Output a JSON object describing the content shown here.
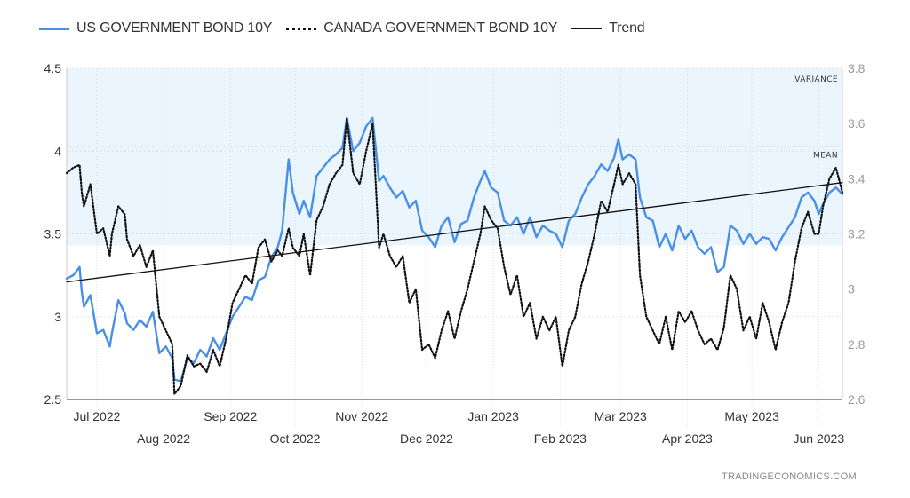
{
  "legend": {
    "us": "US GOVERNMENT BOND 10Y",
    "canada": "CANADA GOVERNMENT BOND 10Y",
    "trend": "Trend"
  },
  "annotations": {
    "variance": "VARIANCE",
    "mean": "MEAN"
  },
  "source": "TRADINGECONOMICS.COM",
  "colors": {
    "us": "#4a8fe7",
    "canada": "#111111",
    "trend": "#111111",
    "band": "#eaf5fd",
    "grid": "#dddddd"
  },
  "chart_data": {
    "type": "line",
    "xlabel": "",
    "ylabel": "",
    "x_range": [
      "2022-06-17",
      "2023-06-12"
    ],
    "ylim_left": [
      2.5,
      4.5
    ],
    "ylim_right": [
      2.6,
      3.8
    ],
    "left_ticks": [
      "2.5",
      "3",
      "3.5",
      "4",
      "4.5"
    ],
    "right_ticks": [
      "2.6",
      "2.8",
      "3",
      "3.2",
      "3.4",
      "3.6",
      "3.8"
    ],
    "x_ticks_upper": [
      {
        "date": "2022-07-01",
        "label": "Jul 2022"
      },
      {
        "date": "2022-09-01",
        "label": "Sep 2022"
      },
      {
        "date": "2022-11-01",
        "label": "Nov 2022"
      },
      {
        "date": "2023-01-01",
        "label": "Jan 2023"
      },
      {
        "date": "2023-03-01",
        "label": "Mar 2023"
      },
      {
        "date": "2023-05-01",
        "label": "May 2023"
      }
    ],
    "x_ticks_lower": [
      {
        "date": "2022-08-01",
        "label": "Aug 2022"
      },
      {
        "date": "2022-10-01",
        "label": "Oct 2022"
      },
      {
        "date": "2022-12-01",
        "label": "Dec 2022"
      },
      {
        "date": "2023-02-01",
        "label": "Feb 2023"
      },
      {
        "date": "2023-04-01",
        "label": "Apr 2023"
      },
      {
        "date": "2023-06-01",
        "label": "Jun 2023"
      }
    ],
    "grid": true,
    "legend_position": "top-left",
    "variance_band": {
      "from": 3.43,
      "to": 4.5
    },
    "mean_line": 4.03,
    "series": [
      {
        "name": "US GOVERNMENT BOND 10Y",
        "axis": "left",
        "style": "solid",
        "points": [
          [
            "2022-06-17",
            3.23
          ],
          [
            "2022-06-20",
            3.25
          ],
          [
            "2022-06-23",
            3.3
          ],
          [
            "2022-06-24",
            3.15
          ],
          [
            "2022-06-25",
            3.06
          ],
          [
            "2022-06-28",
            3.13
          ],
          [
            "2022-07-01",
            2.9
          ],
          [
            "2022-07-04",
            2.92
          ],
          [
            "2022-07-07",
            2.82
          ],
          [
            "2022-07-08",
            2.9
          ],
          [
            "2022-07-11",
            3.1
          ],
          [
            "2022-07-14",
            3.02
          ],
          [
            "2022-07-15",
            2.96
          ],
          [
            "2022-07-18",
            2.92
          ],
          [
            "2022-07-21",
            2.98
          ],
          [
            "2022-07-24",
            2.94
          ],
          [
            "2022-07-27",
            3.03
          ],
          [
            "2022-07-30",
            2.78
          ],
          [
            "2022-08-02",
            2.82
          ],
          [
            "2022-08-05",
            2.75
          ],
          [
            "2022-08-06",
            2.62
          ],
          [
            "2022-08-09",
            2.61
          ],
          [
            "2022-08-12",
            2.75
          ],
          [
            "2022-08-15",
            2.72
          ],
          [
            "2022-08-18",
            2.8
          ],
          [
            "2022-08-21",
            2.76
          ],
          [
            "2022-08-24",
            2.87
          ],
          [
            "2022-08-27",
            2.8
          ],
          [
            "2022-08-30",
            2.9
          ],
          [
            "2022-09-02",
            3.0
          ],
          [
            "2022-09-05",
            3.06
          ],
          [
            "2022-09-08",
            3.12
          ],
          [
            "2022-09-11",
            3.1
          ],
          [
            "2022-09-14",
            3.22
          ],
          [
            "2022-09-17",
            3.24
          ],
          [
            "2022-09-20",
            3.36
          ],
          [
            "2022-09-23",
            3.42
          ],
          [
            "2022-09-25",
            3.52
          ],
          [
            "2022-09-28",
            3.95
          ],
          [
            "2022-09-30",
            3.75
          ],
          [
            "2022-10-03",
            3.62
          ],
          [
            "2022-10-05",
            3.7
          ],
          [
            "2022-10-08",
            3.6
          ],
          [
            "2022-10-11",
            3.85
          ],
          [
            "2022-10-14",
            3.9
          ],
          [
            "2022-10-17",
            3.95
          ],
          [
            "2022-10-20",
            3.98
          ],
          [
            "2022-10-23",
            4.02
          ],
          [
            "2022-10-25",
            4.2
          ],
          [
            "2022-10-28",
            4.0
          ],
          [
            "2022-10-31",
            4.05
          ],
          [
            "2022-11-03",
            4.15
          ],
          [
            "2022-11-06",
            4.2
          ],
          [
            "2022-11-09",
            3.82
          ],
          [
            "2022-11-11",
            3.85
          ],
          [
            "2022-11-14",
            3.78
          ],
          [
            "2022-11-17",
            3.72
          ],
          [
            "2022-11-20",
            3.76
          ],
          [
            "2022-11-23",
            3.66
          ],
          [
            "2022-11-26",
            3.7
          ],
          [
            "2022-11-29",
            3.52
          ],
          [
            "2022-12-02",
            3.48
          ],
          [
            "2022-12-05",
            3.42
          ],
          [
            "2022-12-08",
            3.55
          ],
          [
            "2022-12-11",
            3.6
          ],
          [
            "2022-12-14",
            3.45
          ],
          [
            "2022-12-17",
            3.56
          ],
          [
            "2022-12-20",
            3.58
          ],
          [
            "2022-12-23",
            3.72
          ],
          [
            "2022-12-26",
            3.82
          ],
          [
            "2022-12-28",
            3.88
          ],
          [
            "2022-12-31",
            3.78
          ],
          [
            "2023-01-03",
            3.75
          ],
          [
            "2023-01-06",
            3.58
          ],
          [
            "2023-01-09",
            3.55
          ],
          [
            "2023-01-12",
            3.6
          ],
          [
            "2023-01-15",
            3.5
          ],
          [
            "2023-01-18",
            3.6
          ],
          [
            "2023-01-21",
            3.48
          ],
          [
            "2023-01-24",
            3.55
          ],
          [
            "2023-01-27",
            3.52
          ],
          [
            "2023-01-30",
            3.5
          ],
          [
            "2023-02-02",
            3.42
          ],
          [
            "2023-02-05",
            3.58
          ],
          [
            "2023-02-08",
            3.62
          ],
          [
            "2023-02-11",
            3.72
          ],
          [
            "2023-02-14",
            3.8
          ],
          [
            "2023-02-17",
            3.85
          ],
          [
            "2023-02-20",
            3.92
          ],
          [
            "2023-02-23",
            3.88
          ],
          [
            "2023-02-26",
            3.96
          ],
          [
            "2023-02-28",
            4.07
          ],
          [
            "2023-03-02",
            3.95
          ],
          [
            "2023-03-05",
            3.98
          ],
          [
            "2023-03-08",
            3.95
          ],
          [
            "2023-03-10",
            3.72
          ],
          [
            "2023-03-13",
            3.6
          ],
          [
            "2023-03-16",
            3.58
          ],
          [
            "2023-03-19",
            3.42
          ],
          [
            "2023-03-22",
            3.5
          ],
          [
            "2023-03-25",
            3.4
          ],
          [
            "2023-03-28",
            3.55
          ],
          [
            "2023-03-31",
            3.47
          ],
          [
            "2023-04-03",
            3.52
          ],
          [
            "2023-04-06",
            3.42
          ],
          [
            "2023-04-09",
            3.38
          ],
          [
            "2023-04-12",
            3.42
          ],
          [
            "2023-04-15",
            3.27
          ],
          [
            "2023-04-18",
            3.3
          ],
          [
            "2023-04-21",
            3.55
          ],
          [
            "2023-04-24",
            3.52
          ],
          [
            "2023-04-27",
            3.44
          ],
          [
            "2023-04-30",
            3.5
          ],
          [
            "2023-05-03",
            3.44
          ],
          [
            "2023-05-06",
            3.48
          ],
          [
            "2023-05-09",
            3.47
          ],
          [
            "2023-05-12",
            3.4
          ],
          [
            "2023-05-15",
            3.48
          ],
          [
            "2023-05-18",
            3.54
          ],
          [
            "2023-05-21",
            3.6
          ],
          [
            "2023-05-24",
            3.72
          ],
          [
            "2023-05-27",
            3.75
          ],
          [
            "2023-05-30",
            3.7
          ],
          [
            "2023-06-01",
            3.62
          ],
          [
            "2023-06-03",
            3.68
          ],
          [
            "2023-06-06",
            3.75
          ],
          [
            "2023-06-09",
            3.78
          ],
          [
            "2023-06-12",
            3.74
          ]
        ]
      },
      {
        "name": "CANADA GOVERNMENT BOND 10Y",
        "axis": "right",
        "style": "dotted",
        "points": [
          [
            "2022-06-17",
            3.42
          ],
          [
            "2022-06-20",
            3.44
          ],
          [
            "2022-06-23",
            3.45
          ],
          [
            "2022-06-24",
            3.35
          ],
          [
            "2022-06-25",
            3.3
          ],
          [
            "2022-06-28",
            3.38
          ],
          [
            "2022-07-01",
            3.2
          ],
          [
            "2022-07-04",
            3.22
          ],
          [
            "2022-07-07",
            3.12
          ],
          [
            "2022-07-08",
            3.2
          ],
          [
            "2022-07-11",
            3.3
          ],
          [
            "2022-07-14",
            3.27
          ],
          [
            "2022-07-15",
            3.18
          ],
          [
            "2022-07-18",
            3.12
          ],
          [
            "2022-07-21",
            3.16
          ],
          [
            "2022-07-24",
            3.08
          ],
          [
            "2022-07-27",
            3.14
          ],
          [
            "2022-07-30",
            2.9
          ],
          [
            "2022-08-02",
            2.85
          ],
          [
            "2022-08-05",
            2.8
          ],
          [
            "2022-08-06",
            2.62
          ],
          [
            "2022-08-09",
            2.65
          ],
          [
            "2022-08-12",
            2.76
          ],
          [
            "2022-08-15",
            2.72
          ],
          [
            "2022-08-18",
            2.73
          ],
          [
            "2022-08-21",
            2.7
          ],
          [
            "2022-08-24",
            2.78
          ],
          [
            "2022-08-27",
            2.72
          ],
          [
            "2022-08-30",
            2.82
          ],
          [
            "2022-09-02",
            2.95
          ],
          [
            "2022-09-05",
            3.0
          ],
          [
            "2022-09-08",
            3.05
          ],
          [
            "2022-09-11",
            3.02
          ],
          [
            "2022-09-14",
            3.15
          ],
          [
            "2022-09-17",
            3.18
          ],
          [
            "2022-09-20",
            3.1
          ],
          [
            "2022-09-23",
            3.14
          ],
          [
            "2022-09-25",
            3.12
          ],
          [
            "2022-09-28",
            3.22
          ],
          [
            "2022-09-30",
            3.15
          ],
          [
            "2022-10-03",
            3.12
          ],
          [
            "2022-10-05",
            3.2
          ],
          [
            "2022-10-08",
            3.05
          ],
          [
            "2022-10-11",
            3.25
          ],
          [
            "2022-10-14",
            3.3
          ],
          [
            "2022-10-17",
            3.38
          ],
          [
            "2022-10-20",
            3.42
          ],
          [
            "2022-10-23",
            3.45
          ],
          [
            "2022-10-25",
            3.62
          ],
          [
            "2022-10-28",
            3.42
          ],
          [
            "2022-10-31",
            3.38
          ],
          [
            "2022-11-03",
            3.5
          ],
          [
            "2022-11-06",
            3.6
          ],
          [
            "2022-11-09",
            3.15
          ],
          [
            "2022-11-11",
            3.2
          ],
          [
            "2022-11-14",
            3.12
          ],
          [
            "2022-11-17",
            3.08
          ],
          [
            "2022-11-20",
            3.12
          ],
          [
            "2022-11-23",
            2.95
          ],
          [
            "2022-11-26",
            3.0
          ],
          [
            "2022-11-29",
            2.78
          ],
          [
            "2022-12-02",
            2.8
          ],
          [
            "2022-12-05",
            2.75
          ],
          [
            "2022-12-08",
            2.85
          ],
          [
            "2022-12-11",
            2.92
          ],
          [
            "2022-12-14",
            2.82
          ],
          [
            "2022-12-17",
            2.92
          ],
          [
            "2022-12-20",
            3.0
          ],
          [
            "2022-12-23",
            3.1
          ],
          [
            "2022-12-26",
            3.2
          ],
          [
            "2022-12-28",
            3.3
          ],
          [
            "2022-12-31",
            3.25
          ],
          [
            "2023-01-03",
            3.22
          ],
          [
            "2023-01-06",
            3.08
          ],
          [
            "2023-01-09",
            2.98
          ],
          [
            "2023-01-12",
            3.05
          ],
          [
            "2023-01-15",
            2.9
          ],
          [
            "2023-01-18",
            2.95
          ],
          [
            "2023-01-21",
            2.82
          ],
          [
            "2023-01-24",
            2.9
          ],
          [
            "2023-01-27",
            2.85
          ],
          [
            "2023-01-30",
            2.9
          ],
          [
            "2023-02-02",
            2.72
          ],
          [
            "2023-02-05",
            2.85
          ],
          [
            "2023-02-08",
            2.9
          ],
          [
            "2023-02-11",
            3.02
          ],
          [
            "2023-02-14",
            3.1
          ],
          [
            "2023-02-17",
            3.2
          ],
          [
            "2023-02-20",
            3.32
          ],
          [
            "2023-02-23",
            3.28
          ],
          [
            "2023-02-26",
            3.38
          ],
          [
            "2023-02-28",
            3.45
          ],
          [
            "2023-03-02",
            3.38
          ],
          [
            "2023-03-05",
            3.42
          ],
          [
            "2023-03-08",
            3.38
          ],
          [
            "2023-03-10",
            3.05
          ],
          [
            "2023-03-13",
            2.9
          ],
          [
            "2023-03-16",
            2.85
          ],
          [
            "2023-03-19",
            2.8
          ],
          [
            "2023-03-22",
            2.9
          ],
          [
            "2023-03-25",
            2.78
          ],
          [
            "2023-03-28",
            2.92
          ],
          [
            "2023-03-31",
            2.88
          ],
          [
            "2023-04-03",
            2.92
          ],
          [
            "2023-04-06",
            2.85
          ],
          [
            "2023-04-09",
            2.8
          ],
          [
            "2023-04-12",
            2.82
          ],
          [
            "2023-04-15",
            2.78
          ],
          [
            "2023-04-18",
            2.86
          ],
          [
            "2023-04-21",
            3.05
          ],
          [
            "2023-04-24",
            3.0
          ],
          [
            "2023-04-27",
            2.85
          ],
          [
            "2023-04-30",
            2.9
          ],
          [
            "2023-05-03",
            2.82
          ],
          [
            "2023-05-06",
            2.95
          ],
          [
            "2023-05-09",
            2.88
          ],
          [
            "2023-05-12",
            2.78
          ],
          [
            "2023-05-15",
            2.88
          ],
          [
            "2023-05-18",
            2.95
          ],
          [
            "2023-05-21",
            3.1
          ],
          [
            "2023-05-24",
            3.22
          ],
          [
            "2023-05-27",
            3.28
          ],
          [
            "2023-05-30",
            3.2
          ],
          [
            "2023-06-01",
            3.2
          ],
          [
            "2023-06-03",
            3.3
          ],
          [
            "2023-06-06",
            3.4
          ],
          [
            "2023-06-09",
            3.44
          ],
          [
            "2023-06-12",
            3.35
          ]
        ]
      },
      {
        "name": "Trend",
        "axis": "left",
        "style": "solid",
        "points": [
          [
            "2022-06-17",
            3.21
          ],
          [
            "2023-06-12",
            3.81
          ]
        ]
      }
    ]
  }
}
